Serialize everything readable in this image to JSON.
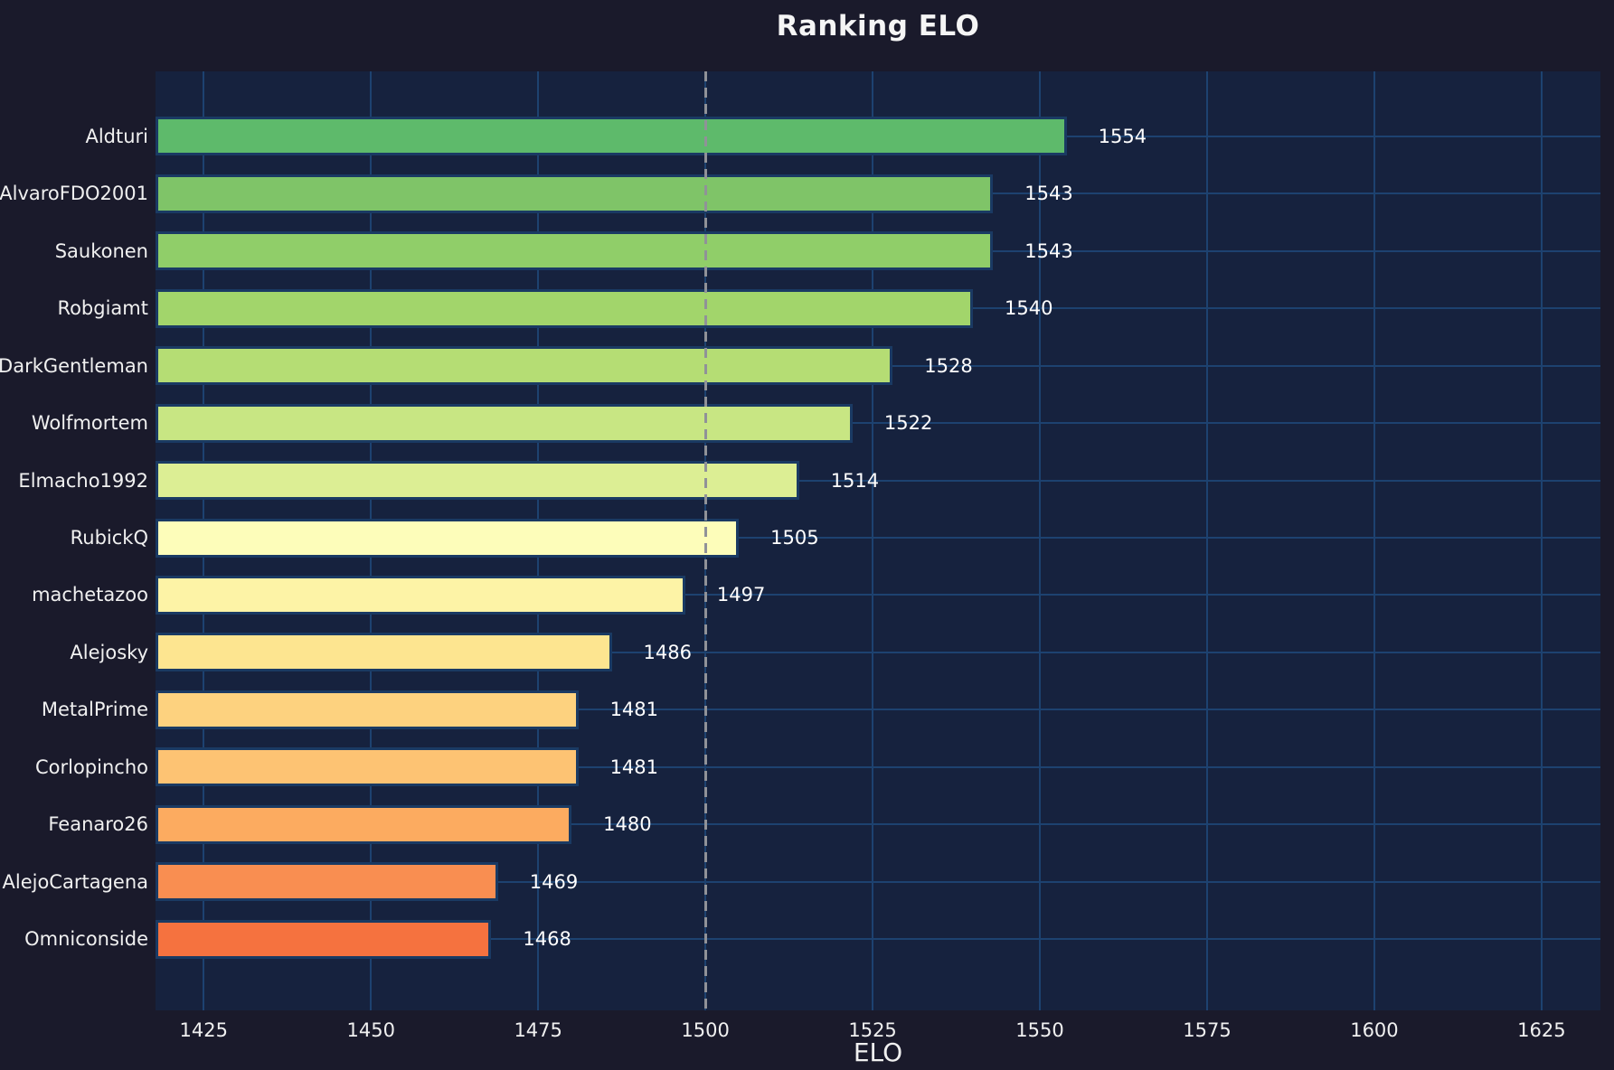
{
  "chart_data": {
    "type": "bar",
    "orientation": "horizontal",
    "title": "Ranking ELO",
    "xlabel": "ELO",
    "categories": [
      "Aldturi",
      "AlvaroFDO2001",
      "Saukonen",
      "Robgiamt",
      "DarkGentleman",
      "Wolfmortem",
      "Elmacho1992",
      "RubickQ",
      "machetazoo",
      "Alejosky",
      "MetalPrime",
      "Corlopincho",
      "Feanaro26",
      "AlejoCartagena",
      "Omniconside"
    ],
    "values": [
      1554,
      1543,
      1543,
      1540,
      1528,
      1522,
      1514,
      1505,
      1497,
      1486,
      1481,
      1481,
      1480,
      1469,
      1468
    ],
    "bar_colors": [
      "#5eba6b",
      "#7fc468",
      "#90ce69",
      "#a2d56b",
      "#b5dd74",
      "#c8e683",
      "#dcee94",
      "#fdfdba",
      "#fdf3a6",
      "#fde590",
      "#fdd27f",
      "#fdc373",
      "#fcab60",
      "#f98e51",
      "#f5723f"
    ],
    "x_ticks": [
      1425,
      1450,
      1475,
      1500,
      1525,
      1550,
      1575,
      1600,
      1625
    ],
    "xlim": [
      1417.8,
      1633.8
    ],
    "reference_line": {
      "value": 1500,
      "style": "dashed"
    },
    "grid": true,
    "legend_position": "none"
  },
  "colors": {
    "background": "#1a1a2b",
    "plot_background": "#16223e",
    "grid": "#1d4270",
    "bar_border": "#1a3a63",
    "reference_line": "#909298",
    "title_text": "#f5f5f5",
    "label_text": "#f0f0f0",
    "value_text": "#ffffff"
  }
}
